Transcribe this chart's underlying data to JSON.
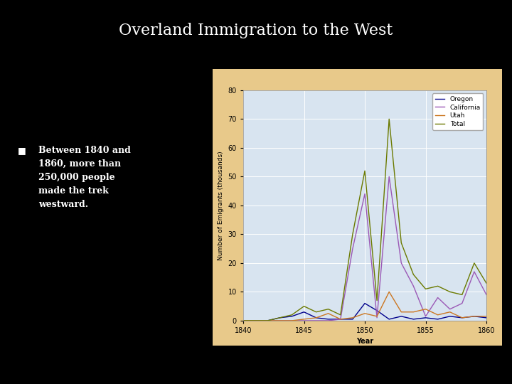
{
  "title": "Overland Immigration to the West",
  "bg_color": "#000000",
  "chart_bg_color": "#e8c98a",
  "plot_bg_color": "#d8e4f0",
  "title_color": "#ffffff",
  "title_fontsize": 16,
  "xlabel": "Year",
  "ylabel": "Number of Emigrants (thousands)",
  "ylim": [
    0,
    80
  ],
  "yticks": [
    0,
    10,
    20,
    30,
    40,
    50,
    60,
    70,
    80
  ],
  "xlim": [
    1840,
    1860
  ],
  "xticks": [
    1840,
    1845,
    1850,
    1855,
    1860
  ],
  "years": [
    1840,
    1841,
    1842,
    1843,
    1844,
    1845,
    1846,
    1847,
    1848,
    1849,
    1850,
    1851,
    1852,
    1853,
    1854,
    1855,
    1856,
    1857,
    1858,
    1859,
    1860
  ],
  "oregon": [
    0,
    0,
    0,
    1,
    1.5,
    3,
    1,
    0.5,
    0.5,
    0.5,
    6,
    3.5,
    0.5,
    1.5,
    0.5,
    1,
    0.5,
    1.5,
    1,
    1.5,
    1
  ],
  "california": [
    0,
    0,
    0,
    0,
    0,
    0,
    0,
    0,
    0.5,
    25,
    44,
    1,
    50,
    20,
    12,
    1.5,
    8,
    4,
    6,
    17,
    9
  ],
  "utah": [
    0,
    0,
    0,
    0,
    0,
    0.5,
    1,
    2.5,
    0.5,
    1,
    2.5,
    1.5,
    10,
    3,
    3,
    4,
    2,
    3,
    1,
    1.5,
    1.5
  ],
  "total": [
    0,
    0,
    0,
    1,
    2,
    5,
    3,
    4,
    2,
    30,
    52,
    7,
    70,
    27,
    16,
    11,
    12,
    10,
    9,
    20,
    13
  ],
  "oregon_color": "#00008b",
  "california_color": "#9b59b6",
  "utah_color": "#cc7722",
  "total_color": "#6b7a00",
  "bullet_text_color": "#ffffff",
  "bullet_text": "Between 1840 and\n1860, more than\n250,000 people\nmade the trek\nwestward."
}
